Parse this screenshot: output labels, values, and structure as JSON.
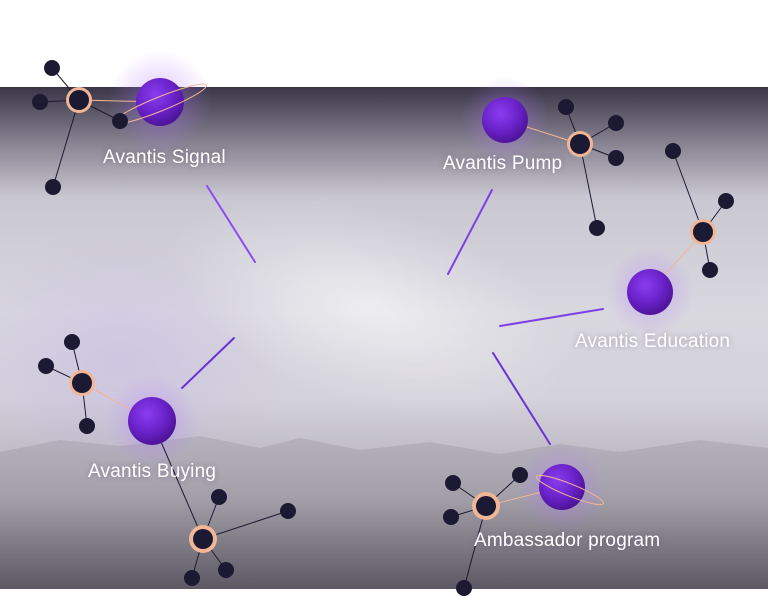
{
  "nodes": [
    {
      "id": "signal",
      "label": "Avantis Signal"
    },
    {
      "id": "pump",
      "label": "Avantis Pump"
    },
    {
      "id": "education",
      "label": "Avantis Education"
    },
    {
      "id": "buying",
      "label": "Avantis Buying"
    },
    {
      "id": "ambassador",
      "label": "Ambassador program"
    }
  ],
  "colors": {
    "planet": "#6a22c9",
    "ring": "#f1b696",
    "dark_node": "#1c1a33",
    "connector": "#7b3fe4"
  }
}
